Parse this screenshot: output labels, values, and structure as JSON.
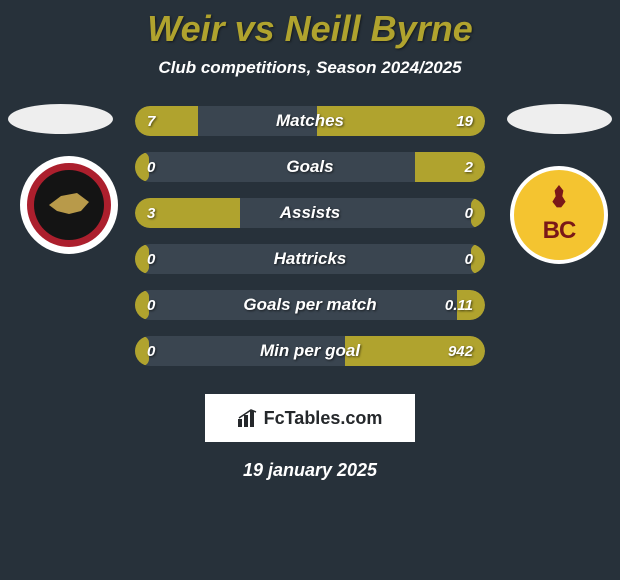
{
  "title": "Weir vs Neill Byrne",
  "subtitle": "Club competitions, Season 2024/2025",
  "accent_color": "#b0a32e",
  "background_color": "#27313a",
  "bar_bg_color": "#3a4550",
  "text_color": "#ffffff",
  "left_badge": {
    "name": "walsall-fc",
    "outer_color": "#ac1f2d",
    "inner_color": "#141414",
    "bird_color": "#b89a4a"
  },
  "right_badge": {
    "name": "bradford-city-afc",
    "bg_color": "#f4c430",
    "text_color": "#7a1818",
    "initials": "BC"
  },
  "bars": [
    {
      "label": "Matches",
      "left": "7",
      "right": "19",
      "left_pct": 18,
      "right_pct": 48
    },
    {
      "label": "Goals",
      "left": "0",
      "right": "2",
      "left_pct": 4,
      "right_pct": 20
    },
    {
      "label": "Assists",
      "left": "3",
      "right": "0",
      "left_pct": 30,
      "right_pct": 4
    },
    {
      "label": "Hattricks",
      "left": "0",
      "right": "0",
      "left_pct": 4,
      "right_pct": 4
    },
    {
      "label": "Goals per match",
      "left": "0",
      "right": "0.11",
      "left_pct": 4,
      "right_pct": 8
    },
    {
      "label": "Min per goal",
      "left": "0",
      "right": "942",
      "left_pct": 4,
      "right_pct": 40
    }
  ],
  "footer_brand": "FcTables.com",
  "footer_date": "19 january 2025"
}
